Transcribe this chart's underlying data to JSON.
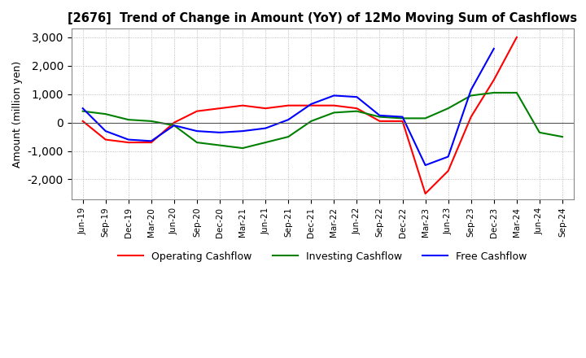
{
  "title": "[2676]  Trend of Change in Amount (YoY) of 12Mo Moving Sum of Cashflows",
  "ylabel": "Amount (million yen)",
  "x_labels": [
    "Jun-19",
    "Sep-19",
    "Dec-19",
    "Mar-20",
    "Jun-20",
    "Sep-20",
    "Dec-20",
    "Mar-21",
    "Jun-21",
    "Sep-21",
    "Dec-21",
    "Mar-22",
    "Jun-22",
    "Sep-22",
    "Dec-22",
    "Mar-23",
    "Jun-23",
    "Sep-23",
    "Dec-23",
    "Mar-24",
    "Jun-24",
    "Sep-24"
  ],
  "operating": [
    50,
    -600,
    -700,
    -700,
    0,
    400,
    500,
    600,
    500,
    600,
    600,
    600,
    500,
    50,
    50,
    -2500,
    -1700,
    200,
    1500,
    3000,
    null,
    null
  ],
  "investing": [
    400,
    300,
    100,
    50,
    -100,
    -700,
    -800,
    -900,
    -700,
    -500,
    50,
    350,
    400,
    200,
    150,
    150,
    500,
    950,
    1050,
    1050,
    -350,
    -500
  ],
  "free": [
    500,
    -300,
    -600,
    -650,
    -100,
    -300,
    -350,
    -300,
    -200,
    100,
    650,
    950,
    900,
    250,
    200,
    -1500,
    -1200,
    1150,
    2600,
    null,
    null,
    null
  ],
  "ylim": [
    -2700,
    3300
  ],
  "yticks": [
    -2000,
    -1000,
    0,
    1000,
    2000,
    3000
  ],
  "line_colors": {
    "operating": "#ff0000",
    "investing": "#008000",
    "free": "#0000ff"
  },
  "legend_labels": [
    "Operating Cashflow",
    "Investing Cashflow",
    "Free Cashflow"
  ],
  "background_color": "#ffffff",
  "grid_color": "#aaaaaa",
  "grid_style": ":"
}
